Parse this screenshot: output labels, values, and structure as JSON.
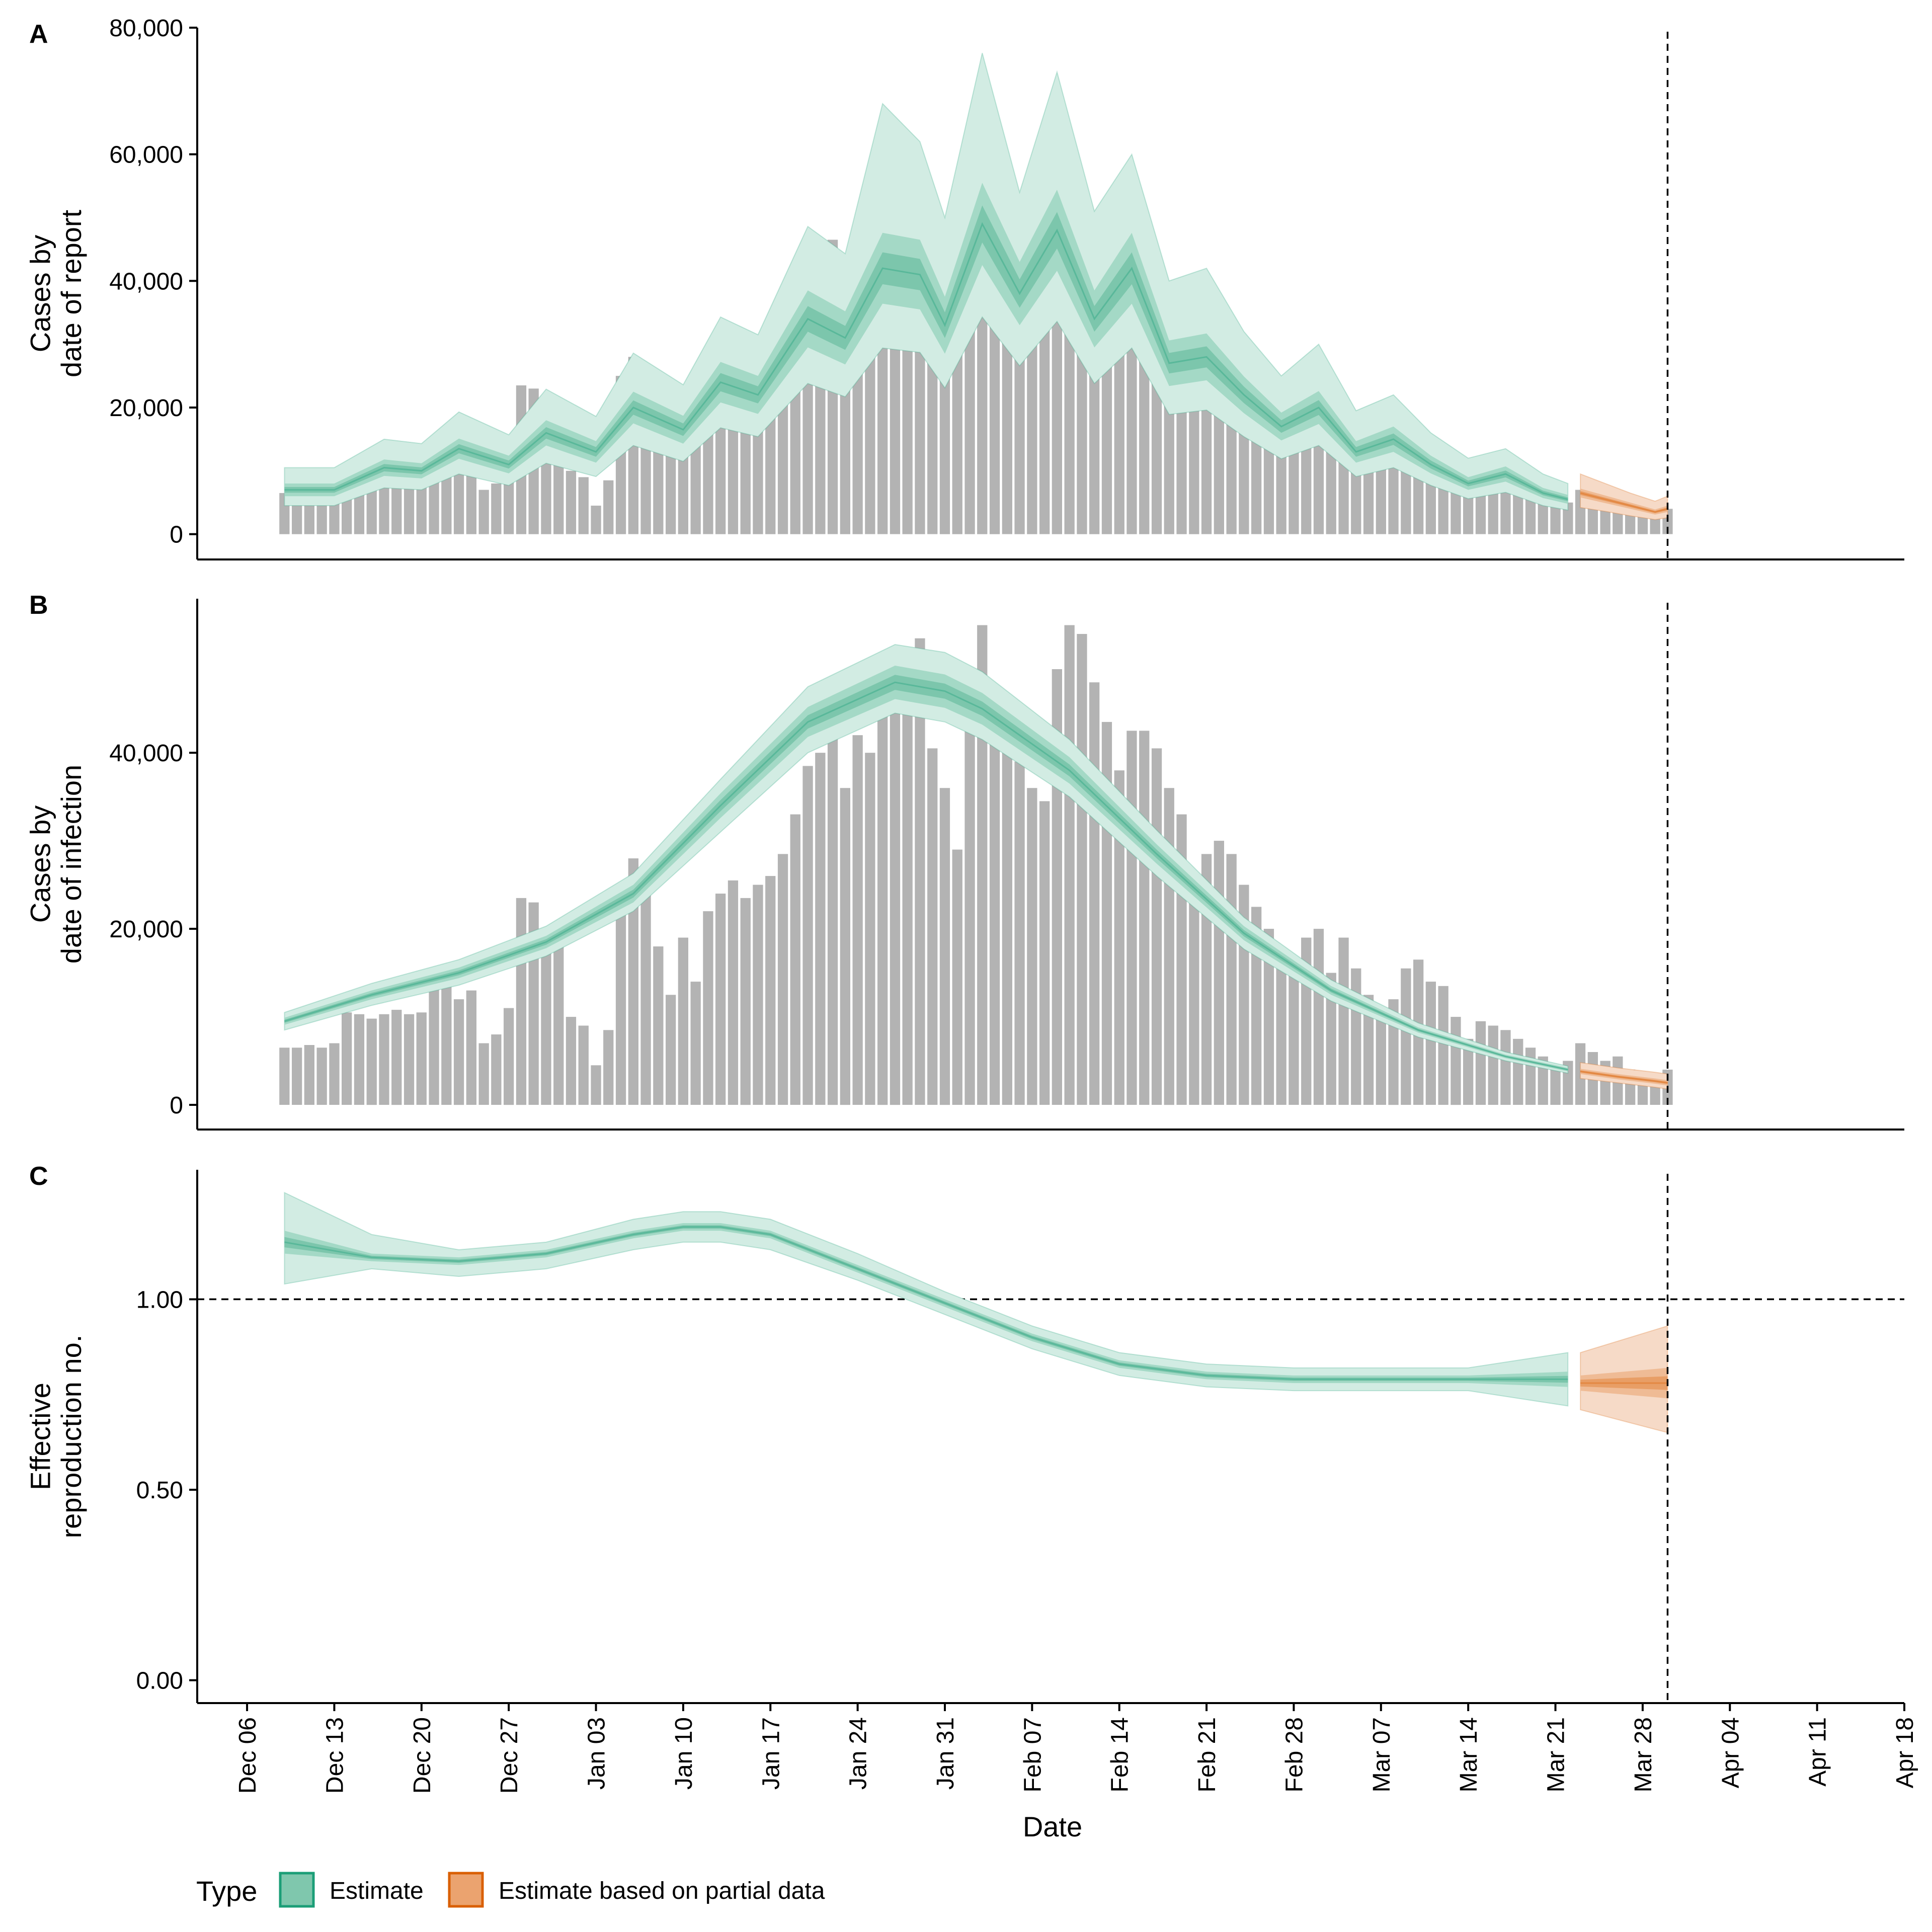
{
  "legend": {
    "title": "Type",
    "items": [
      {
        "label": "Estimate",
        "fill": "#7fc7ad",
        "stroke": "#1b9e77"
      },
      {
        "label": "Estimate based on partial data",
        "fill": "#eba36f",
        "stroke": "#d95f02"
      }
    ]
  },
  "colors": {
    "estimate_outer": "#1b9e77",
    "partial_outer": "#d95f02",
    "bars": "#b3b3b3",
    "axis": "#000000"
  },
  "chart_data": {
    "type": "area",
    "x_axis": {
      "label": "Date",
      "range": [
        "2020-12-02",
        "2021-04-18"
      ],
      "tick_labels": [
        "Dec 06",
        "Dec 13",
        "Dec 20",
        "Dec 27",
        "Jan 03",
        "Jan 10",
        "Jan 17",
        "Jan 24",
        "Jan 31",
        "Feb 07",
        "Feb 14",
        "Feb 21",
        "Feb 28",
        "Mar 07",
        "Mar 14",
        "Mar 21",
        "Mar 28",
        "Apr 04",
        "Apr 11",
        "Apr 18"
      ],
      "tick_dates": [
        "2020-12-06",
        "2020-12-13",
        "2020-12-20",
        "2020-12-27",
        "2021-01-03",
        "2021-01-10",
        "2021-01-17",
        "2021-01-24",
        "2021-01-31",
        "2021-02-07",
        "2021-02-14",
        "2021-02-21",
        "2021-02-28",
        "2021-03-07",
        "2021-03-14",
        "2021-03-21",
        "2021-03-28",
        "2021-04-04",
        "2021-04-11",
        "2021-04-18"
      ]
    },
    "vline_date": "2021-03-30",
    "partial_start": "2021-03-23",
    "observed_cases": {
      "start_date": "2020-12-09",
      "end_date": "2021-03-30",
      "values": [
        6500,
        6500,
        6800,
        6500,
        7000,
        10500,
        10300,
        9800,
        10300,
        10800,
        10300,
        10500,
        14000,
        13500,
        12000,
        13000,
        7000,
        8000,
        11000,
        23500,
        23000,
        19000,
        20000,
        10000,
        9000,
        4500,
        8500,
        25000,
        28000,
        25500,
        18000,
        12500,
        19000,
        14000,
        22000,
        24000,
        25500,
        23500,
        25000,
        26000,
        28500,
        33000,
        38500,
        40000,
        46500,
        36000,
        42000,
        40000,
        46500,
        46500,
        51000,
        53000,
        40500,
        36000,
        29000,
        45000,
        54500,
        44000,
        40000,
        39000,
        36000,
        34500,
        49500,
        54500,
        53500,
        48000,
        43500,
        38000,
        42500,
        42500,
        40500,
        36000,
        33000,
        25000,
        28500,
        30000,
        28500,
        25000,
        22500,
        20000,
        16000,
        16500,
        19000,
        20000,
        15000,
        19000,
        15500,
        12500,
        10500,
        12000,
        15500,
        16500,
        14000,
        13500,
        10000,
        7500,
        9500,
        9000,
        8500,
        7500,
        6500,
        5500,
        4500,
        5000,
        7000,
        6000,
        5000,
        5500,
        4000,
        3000,
        3500,
        4000
      ]
    },
    "panels": [
      {
        "id": "A",
        "ylabel": "Cases by\ndate of report",
        "ylim": [
          -4000,
          80000
        ],
        "y_ticks": [
          0,
          20000,
          40000,
          60000,
          80000
        ],
        "y_tick_labels": [
          "0",
          "20,000",
          "40,000",
          "60,000",
          "80,000"
        ],
        "estimate": {
          "dates": [
            "2020-12-09",
            "2020-12-13",
            "2020-12-17",
            "2020-12-20",
            "2020-12-23",
            "2020-12-27",
            "2020-12-30",
            "2021-01-03",
            "2021-01-06",
            "2021-01-10",
            "2021-01-13",
            "2021-01-16",
            "2021-01-20",
            "2021-01-23",
            "2021-01-26",
            "2021-01-29",
            "2021-01-31",
            "2021-02-03",
            "2021-02-06",
            "2021-02-09",
            "2021-02-12",
            "2021-02-15",
            "2021-02-18",
            "2021-02-21",
            "2021-02-24",
            "2021-02-27",
            "2021-03-02",
            "2021-03-05",
            "2021-03-08",
            "2021-03-11",
            "2021-03-14",
            "2021-03-17",
            "2021-03-20",
            "2021-03-22"
          ],
          "median": [
            7000,
            7000,
            10500,
            10000,
            13500,
            11000,
            16000,
            13000,
            20000,
            16500,
            24000,
            22000,
            34000,
            31000,
            42000,
            41000,
            33000,
            49000,
            38000,
            48000,
            34000,
            42000,
            27000,
            28000,
            22000,
            17000,
            20000,
            13000,
            15000,
            11000,
            8000,
            9500,
            6500,
            5500
          ],
          "q25": [
            6000,
            6000,
            9200,
            8800,
            11900,
            9600,
            14000,
            11300,
            17500,
            14300,
            20800,
            19000,
            29500,
            26800,
            36400,
            35500,
            28500,
            42500,
            33000,
            41600,
            29500,
            36400,
            23400,
            24300,
            19100,
            14800,
            17400,
            11300,
            13000,
            9600,
            7000,
            8300,
            5700,
            4800
          ],
          "q75": [
            8000,
            8000,
            11800,
            11200,
            15100,
            12400,
            18000,
            14700,
            22500,
            18700,
            27200,
            25000,
            38500,
            35200,
            47600,
            46500,
            37500,
            55500,
            43000,
            54400,
            38500,
            47600,
            30600,
            31700,
            24900,
            19200,
            22600,
            14700,
            17000,
            12400,
            9000,
            10700,
            7300,
            6200
          ],
          "lower": [
            4500,
            4500,
            7300,
            7000,
            9500,
            7700,
            11200,
            9100,
            14000,
            11500,
            16800,
            15400,
            23800,
            21700,
            29400,
            28700,
            23100,
            34300,
            26600,
            33600,
            23800,
            29400,
            18900,
            19600,
            15400,
            11900,
            14000,
            9100,
            10500,
            7700,
            5600,
            6600,
            4500,
            3800
          ],
          "upper": [
            10500,
            10500,
            15000,
            14300,
            19300,
            15700,
            22900,
            18600,
            28600,
            23600,
            34300,
            31500,
            48600,
            44300,
            68000,
            62000,
            50000,
            76000,
            54000,
            73000,
            51000,
            60000,
            40000,
            42000,
            32000,
            25000,
            30000,
            19500,
            22000,
            16000,
            12000,
            13500,
            9500,
            8000
          ]
        },
        "partial": {
          "dates": [
            "2021-03-23",
            "2021-03-25",
            "2021-03-27",
            "2021-03-29",
            "2021-03-30"
          ],
          "median": [
            6500,
            5500,
            4500,
            3500,
            4000
          ],
          "q25": [
            5800,
            4900,
            4000,
            3100,
            3500
          ],
          "q75": [
            7200,
            6100,
            5000,
            3900,
            4500
          ],
          "lower": [
            4200,
            3600,
            2900,
            2300,
            2600
          ],
          "upper": [
            9500,
            8000,
            6500,
            5200,
            6000
          ]
        }
      },
      {
        "id": "B",
        "ylabel": "Cases by\ndate of infection",
        "ylim": [
          -2800,
          57500
        ],
        "y_ticks": [
          0,
          20000,
          40000
        ],
        "y_tick_labels": [
          "0",
          "20,000",
          "40,000"
        ],
        "estimate": {
          "dates": [
            "2020-12-09",
            "2020-12-16",
            "2020-12-23",
            "2020-12-30",
            "2021-01-06",
            "2021-01-13",
            "2021-01-20",
            "2021-01-27",
            "2021-01-31",
            "2021-02-03",
            "2021-02-10",
            "2021-02-17",
            "2021-02-24",
            "2021-03-03",
            "2021-03-10",
            "2021-03-17",
            "2021-03-22"
          ],
          "median": [
            9500,
            12500,
            15000,
            18500,
            24000,
            34000,
            43500,
            48000,
            47000,
            45000,
            38000,
            28500,
            19500,
            13000,
            8500,
            5500,
            4000
          ],
          "q25": [
            9100,
            12000,
            14400,
            17800,
            23000,
            32600,
            41800,
            46100,
            45100,
            43200,
            36500,
            27400,
            18700,
            12500,
            8200,
            5300,
            3800
          ],
          "q75": [
            9900,
            13000,
            15600,
            19200,
            25000,
            35400,
            45200,
            49900,
            48900,
            46800,
            39500,
            29600,
            20300,
            13500,
            8800,
            5700,
            4200
          ],
          "lower": [
            8500,
            11300,
            13600,
            16900,
            22000,
            31000,
            40000,
            44500,
            43500,
            41500,
            35000,
            26000,
            17700,
            11800,
            7700,
            5000,
            3600
          ],
          "upper": [
            10500,
            13800,
            16500,
            20300,
            26300,
            37000,
            47500,
            52300,
            51400,
            49200,
            41500,
            31200,
            21300,
            14200,
            9300,
            6000,
            4400
          ]
        },
        "partial": {
          "dates": [
            "2021-03-23",
            "2021-03-26",
            "2021-03-29",
            "2021-03-30"
          ],
          "median": [
            3800,
            3200,
            2700,
            2500
          ],
          "q25": [
            3500,
            2900,
            2400,
            2200
          ],
          "q75": [
            4100,
            3500,
            3000,
            2800
          ],
          "lower": [
            3000,
            2500,
            2000,
            1800
          ],
          "upper": [
            4800,
            4200,
            3700,
            3500
          ]
        }
      },
      {
        "id": "C",
        "ylabel": "Effective\nreproduction no.",
        "ylim": [
          -0.06,
          1.34
        ],
        "y_ticks": [
          0,
          0.5,
          1.0
        ],
        "y_tick_labels": [
          "0.00",
          "0.50",
          "1.00"
        ],
        "hline": 1.0,
        "estimate": {
          "dates": [
            "2020-12-09",
            "2020-12-16",
            "2020-12-23",
            "2020-12-30",
            "2021-01-06",
            "2021-01-10",
            "2021-01-13",
            "2021-01-17",
            "2021-01-24",
            "2021-01-31",
            "2021-02-07",
            "2021-02-14",
            "2021-02-21",
            "2021-02-28",
            "2021-03-07",
            "2021-03-14",
            "2021-03-22"
          ],
          "median": [
            1.15,
            1.11,
            1.1,
            1.12,
            1.17,
            1.19,
            1.19,
            1.17,
            1.08,
            0.99,
            0.9,
            0.83,
            0.8,
            0.79,
            0.79,
            0.79,
            0.79
          ],
          "q25": [
            1.12,
            1.1,
            1.09,
            1.11,
            1.16,
            1.18,
            1.18,
            1.16,
            1.07,
            0.98,
            0.89,
            0.82,
            0.79,
            0.78,
            0.78,
            0.78,
            0.77
          ],
          "q75": [
            1.18,
            1.12,
            1.11,
            1.13,
            1.18,
            1.2,
            1.2,
            1.18,
            1.09,
            1.0,
            0.91,
            0.84,
            0.81,
            0.8,
            0.8,
            0.8,
            0.81
          ],
          "lower": [
            1.04,
            1.08,
            1.06,
            1.08,
            1.13,
            1.15,
            1.15,
            1.13,
            1.05,
            0.96,
            0.87,
            0.8,
            0.77,
            0.76,
            0.76,
            0.76,
            0.72
          ],
          "upper": [
            1.28,
            1.17,
            1.13,
            1.15,
            1.21,
            1.23,
            1.23,
            1.21,
            1.12,
            1.02,
            0.93,
            0.86,
            0.83,
            0.82,
            0.82,
            0.82,
            0.86
          ]
        },
        "partial": {
          "dates": [
            "2021-03-23",
            "2021-03-30"
          ],
          "median": [
            0.78,
            0.78
          ],
          "q25": [
            0.76,
            0.74
          ],
          "q75": [
            0.8,
            0.82
          ],
          "lower": [
            0.71,
            0.65
          ],
          "upper": [
            0.86,
            0.93
          ]
        }
      }
    ]
  }
}
